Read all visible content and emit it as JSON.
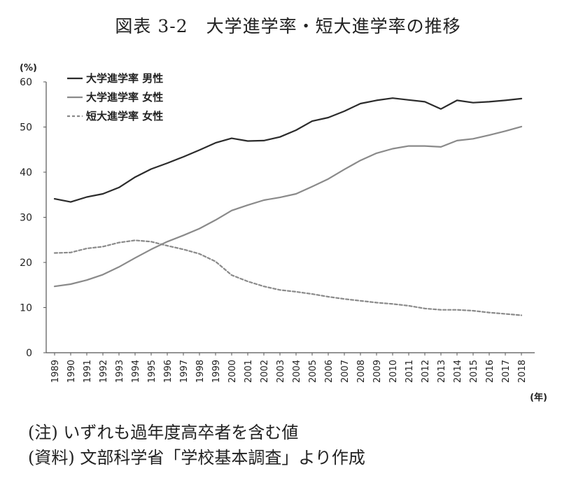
{
  "title": "図表 3-2　大学進学率・短大進学率の推移",
  "notes": {
    "note1": "(注) いずれも過年度高卒者を含む値",
    "note2": "(資料) 文部科学省「学校基本調査」より作成"
  },
  "chart_data": {
    "type": "line",
    "y_unit": "(%)",
    "x_unit": "(年)",
    "ylim": [
      0,
      60
    ],
    "yticks": [
      0,
      10,
      20,
      30,
      40,
      50,
      60
    ],
    "grid": false,
    "legend_position": "top-left",
    "x": [
      "1989",
      "1990",
      "1991",
      "1992",
      "1993",
      "1994",
      "1995",
      "1996",
      "1997",
      "1998",
      "1999",
      "2000",
      "2001",
      "2002",
      "2003",
      "2004",
      "2005",
      "2006",
      "2007",
      "2008",
      "2009",
      "2010",
      "2011",
      "2012",
      "2013",
      "2014",
      "2015",
      "2016",
      "2017",
      "2018"
    ],
    "series": [
      {
        "name": "大学進学率 男性",
        "color": "#2b2b2b",
        "dash": "solid",
        "values": [
          34.1,
          33.4,
          34.5,
          35.2,
          36.6,
          38.9,
          40.7,
          42.0,
          43.4,
          44.9,
          46.5,
          47.5,
          46.9,
          47.0,
          47.8,
          49.3,
          51.3,
          52.1,
          53.5,
          55.2,
          55.9,
          56.4,
          56.0,
          55.6,
          54.0,
          55.9,
          55.4,
          55.6,
          55.9,
          56.3
        ]
      },
      {
        "name": "大学進学率 女性",
        "color": "#8a8a8a",
        "dash": "solid",
        "values": [
          14.7,
          15.2,
          16.1,
          17.3,
          19.0,
          21.0,
          22.9,
          24.6,
          26.0,
          27.5,
          29.4,
          31.5,
          32.7,
          33.8,
          34.4,
          35.2,
          36.8,
          38.5,
          40.6,
          42.6,
          44.2,
          45.2,
          45.8,
          45.8,
          45.6,
          47.0,
          47.4,
          48.2,
          49.1,
          50.1
        ]
      },
      {
        "name": "短大進学率 女性",
        "color": "#8a8a8a",
        "dash": "dashed",
        "values": [
          22.1,
          22.2,
          23.1,
          23.5,
          24.4,
          24.9,
          24.6,
          23.7,
          22.9,
          21.9,
          20.2,
          17.2,
          15.8,
          14.7,
          13.9,
          13.5,
          13.0,
          12.4,
          11.9,
          11.5,
          11.1,
          10.8,
          10.4,
          9.8,
          9.5,
          9.5,
          9.3,
          8.9,
          8.6,
          8.3
        ]
      }
    ]
  }
}
